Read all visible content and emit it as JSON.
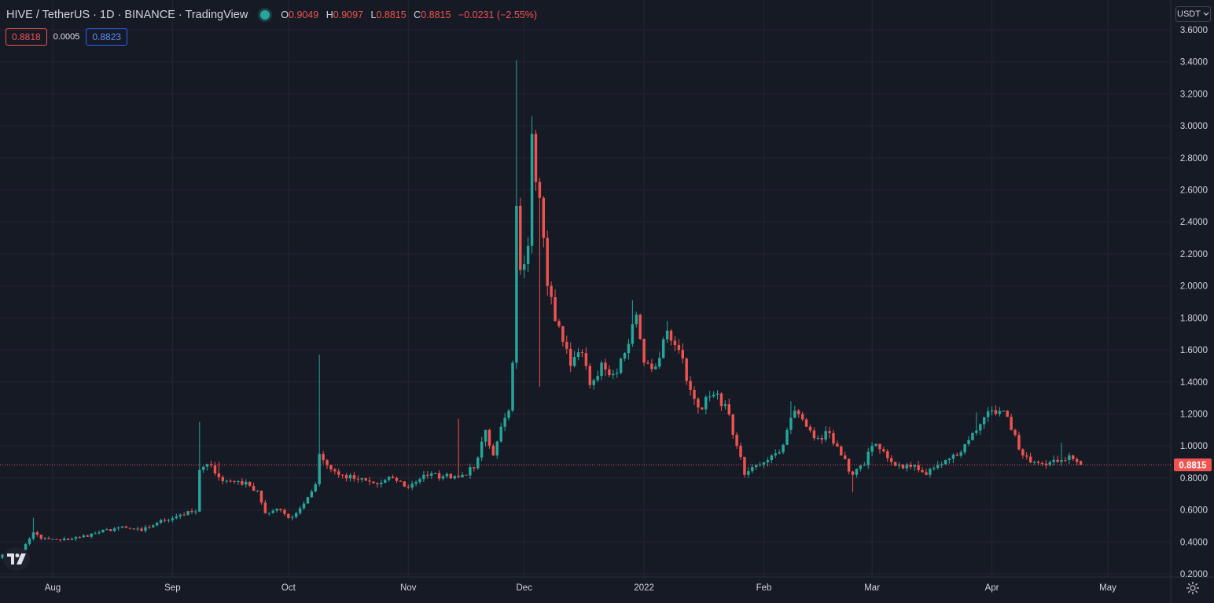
{
  "legend": {
    "title": "HIVE / TetherUS · 1D · BINANCE · TradingView",
    "open_label": "O",
    "open": "0.9049",
    "high_label": "H",
    "high": "0.9097",
    "low_label": "L",
    "low": "0.8815",
    "close_label": "C",
    "close": "0.8815",
    "change": "−0.0231 (−2.55%)"
  },
  "spread": {
    "sell": "0.8818",
    "spread": "0.0005",
    "buy": "0.8823"
  },
  "currency_button": "USDT",
  "colors": {
    "up": "#26a69a",
    "down": "#ef5350",
    "background": "#161a25",
    "grid": "#242733"
  },
  "icons": [
    "tradingview-logo-icon",
    "chevron-down-icon",
    "settings-gear-icon",
    "live-status-dot-icon"
  ],
  "chart_data": {
    "type": "candlestick",
    "symbol": "HIVE / TetherUS",
    "interval": "1D",
    "exchange": "BINANCE",
    "y_ticks": [
      "0.2000",
      "0.4000",
      "0.6000",
      "0.8000",
      "1.0000",
      "1.2000",
      "1.4000",
      "1.6000",
      "1.8000",
      "2.0000",
      "2.2000",
      "2.4000",
      "2.6000",
      "2.8000",
      "3.0000",
      "3.2000",
      "3.4000",
      "3.6000"
    ],
    "ylim": [
      0.2,
      3.6
    ],
    "x_ticks": [
      "Aug",
      "Sep",
      "Oct",
      "Nov",
      "Dec",
      "2022",
      "Feb",
      "Mar",
      "Apr",
      "May"
    ],
    "x_tick_dates": [
      "2021-08-01",
      "2021-09-01",
      "2021-10-01",
      "2021-11-01",
      "2021-12-01",
      "2022-01-01",
      "2022-02-01",
      "2022-03-01",
      "2022-04-01",
      "2022-05-01"
    ],
    "last_price": 0.8815,
    "last_price_label": "0.8815",
    "grid": true,
    "series": [
      {
        "name": "HIVE/USDT",
        "close_anchors": [
          [
            "2021-07-17",
            0.3
          ],
          [
            "2021-07-20",
            0.32
          ],
          [
            "2021-07-24",
            0.35
          ],
          [
            "2021-07-27",
            0.46
          ],
          [
            "2021-07-29",
            0.42
          ],
          [
            "2021-08-03",
            0.41
          ],
          [
            "2021-08-08",
            0.43
          ],
          [
            "2021-08-13",
            0.46
          ],
          [
            "2021-08-18",
            0.49
          ],
          [
            "2021-08-24",
            0.47
          ],
          [
            "2021-08-28",
            0.52
          ],
          [
            "2021-09-03",
            0.57
          ],
          [
            "2021-09-07",
            0.59
          ],
          [
            "2021-09-08",
            0.85
          ],
          [
            "2021-09-11",
            0.88
          ],
          [
            "2021-09-14",
            0.78
          ],
          [
            "2021-09-18",
            0.78
          ],
          [
            "2021-09-21",
            0.75
          ],
          [
            "2021-09-23",
            0.72
          ],
          [
            "2021-09-25",
            0.58
          ],
          [
            "2021-09-29",
            0.6
          ],
          [
            "2021-10-01",
            0.55
          ],
          [
            "2021-10-03",
            0.58
          ],
          [
            "2021-10-06",
            0.68
          ],
          [
            "2021-10-08",
            0.76
          ],
          [
            "2021-10-09",
            0.95
          ],
          [
            "2021-10-11",
            0.88
          ],
          [
            "2021-10-14",
            0.82
          ],
          [
            "2021-10-19",
            0.79
          ],
          [
            "2021-10-24",
            0.76
          ],
          [
            "2021-10-28",
            0.8
          ],
          [
            "2021-11-01",
            0.74
          ],
          [
            "2021-11-05",
            0.82
          ],
          [
            "2021-11-10",
            0.81
          ],
          [
            "2021-11-15",
            0.82
          ],
          [
            "2021-11-18",
            0.86
          ],
          [
            "2021-11-21",
            1.1
          ],
          [
            "2021-11-23",
            0.94
          ],
          [
            "2021-11-25",
            1.12
          ],
          [
            "2021-11-27",
            1.22
          ],
          [
            "2021-11-28",
            1.52
          ],
          [
            "2021-11-29",
            2.5
          ],
          [
            "2021-11-30",
            2.1
          ],
          [
            "2021-12-02",
            2.25
          ],
          [
            "2021-12-03",
            2.95
          ],
          [
            "2021-12-04",
            2.65
          ],
          [
            "2021-12-05",
            2.55
          ],
          [
            "2021-12-06",
            2.3
          ],
          [
            "2021-12-07",
            2.0
          ],
          [
            "2021-12-09",
            1.78
          ],
          [
            "2021-12-11",
            1.65
          ],
          [
            "2021-12-13",
            1.5
          ],
          [
            "2021-12-16",
            1.58
          ],
          [
            "2021-12-18",
            1.38
          ],
          [
            "2021-12-21",
            1.52
          ],
          [
            "2021-12-24",
            1.45
          ],
          [
            "2021-12-27",
            1.58
          ],
          [
            "2021-12-30",
            1.82
          ],
          [
            "2022-01-01",
            1.52
          ],
          [
            "2022-01-03",
            1.48
          ],
          [
            "2022-01-05",
            1.55
          ],
          [
            "2022-01-07",
            1.72
          ],
          [
            "2022-01-10",
            1.6
          ],
          [
            "2022-01-13",
            1.35
          ],
          [
            "2022-01-15",
            1.24
          ],
          [
            "2022-01-19",
            1.32
          ],
          [
            "2022-01-22",
            1.26
          ],
          [
            "2022-01-25",
            1.0
          ],
          [
            "2022-01-27",
            0.82
          ],
          [
            "2022-01-30",
            0.88
          ],
          [
            "2022-02-03",
            0.94
          ],
          [
            "2022-02-05",
            0.96
          ],
          [
            "2022-02-07",
            1.1
          ],
          [
            "2022-02-09",
            1.22
          ],
          [
            "2022-02-12",
            1.12
          ],
          [
            "2022-02-15",
            1.05
          ],
          [
            "2022-02-18",
            1.08
          ],
          [
            "2022-02-21",
            0.94
          ],
          [
            "2022-02-24",
            0.82
          ],
          [
            "2022-02-27",
            0.88
          ],
          [
            "2022-03-01",
            1.0
          ],
          [
            "2022-03-03",
            0.98
          ],
          [
            "2022-03-06",
            0.9
          ],
          [
            "2022-03-09",
            0.86
          ],
          [
            "2022-03-12",
            0.88
          ],
          [
            "2022-03-15",
            0.82
          ],
          [
            "2022-03-18",
            0.88
          ],
          [
            "2022-03-21",
            0.92
          ],
          [
            "2022-03-24",
            0.96
          ],
          [
            "2022-03-27",
            1.08
          ],
          [
            "2022-03-30",
            1.18
          ],
          [
            "2022-04-02",
            1.2
          ],
          [
            "2022-04-04",
            1.22
          ],
          [
            "2022-04-06",
            1.1
          ],
          [
            "2022-04-09",
            0.94
          ],
          [
            "2022-04-12",
            0.9
          ],
          [
            "2022-04-15",
            0.88
          ],
          [
            "2022-04-18",
            0.9
          ],
          [
            "2022-04-21",
            0.94
          ],
          [
            "2022-04-23",
            0.9
          ],
          [
            "2022-04-24",
            0.8815
          ]
        ],
        "wick_spikes": [
          [
            "2021-07-27",
            0.55
          ],
          [
            "2021-09-08",
            1.15
          ],
          [
            "2021-09-13",
            0.9
          ],
          [
            "2021-10-09",
            1.57
          ],
          [
            "2021-11-14",
            1.17
          ],
          [
            "2021-11-29",
            3.41
          ],
          [
            "2021-12-03",
            3.06
          ],
          [
            "2021-12-05",
            1.37
          ],
          [
            "2021-12-07",
            1.94
          ],
          [
            "2021-12-29",
            1.91
          ],
          [
            "2022-01-07",
            1.78
          ],
          [
            "2022-02-08",
            1.28
          ],
          [
            "2022-02-24",
            0.71
          ],
          [
            "2022-03-28",
            1.21
          ],
          [
            "2022-04-19",
            1.02
          ]
        ]
      }
    ]
  }
}
